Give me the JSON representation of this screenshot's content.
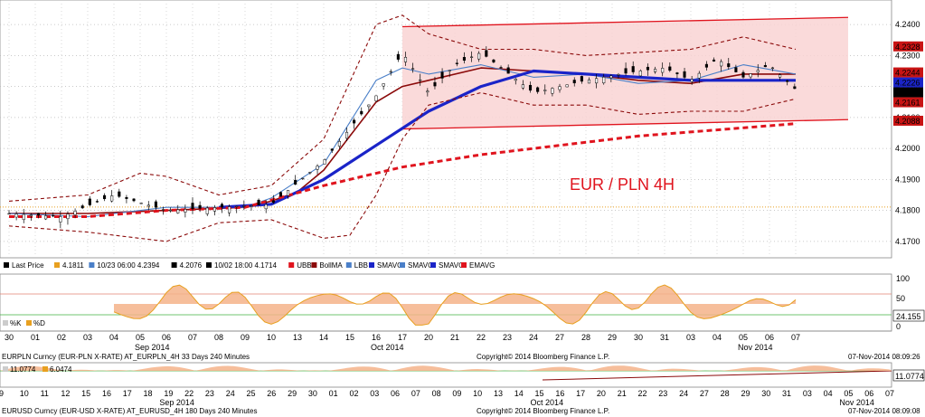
{
  "chart_data": {
    "type": "line",
    "title": "EUR / PLN 4H",
    "y_axis": {
      "range": [
        4.165,
        4.245
      ],
      "ticks": [
        "4.2400",
        "4.2300",
        "4.2200",
        "4.2100",
        "4.2000",
        "4.1900",
        "4.1800",
        "4.1700"
      ],
      "labels": [
        {
          "value": 4.2328,
          "text": "4.2328",
          "color": "#c81414"
        },
        {
          "value": 4.2244,
          "text": "4.2244",
          "color": "#c81414"
        },
        {
          "value": 4.2226,
          "text": "4.2226",
          "color": "#1a24c8"
        },
        {
          "value": 4.2189,
          "text": "4.2189",
          "color": "#000000"
        },
        {
          "value": 4.2161,
          "text": "4.2161",
          "color": "#c81414"
        },
        {
          "value": 4.2088,
          "text": "4.2088",
          "color": "#c81414"
        }
      ]
    },
    "x_dates": [
      "30",
      "01",
      "02",
      "03",
      "04",
      "05",
      "06",
      "07",
      "08",
      "09",
      "10",
      "13",
      "14",
      "15",
      "16",
      "17",
      "20",
      "21",
      "22",
      "23",
      "24",
      "27",
      "28",
      "29",
      "30",
      "31",
      "03",
      "04",
      "05",
      "06",
      "07"
    ],
    "x_month_labels": [
      {
        "text": "Sep 2014",
        "at": 5
      },
      {
        "text": "Oct 2014",
        "at": 14
      },
      {
        "text": "Nov 2014",
        "at": 28
      }
    ],
    "series": [
      {
        "name": "Last Price",
        "color": "#000000",
        "style": "candles",
        "x": [
          0,
          2,
          4,
          6,
          8,
          10,
          12,
          14,
          15,
          16,
          17,
          18,
          20,
          22,
          24,
          25,
          26,
          27,
          28,
          29,
          30
        ],
        "values": [
          4.179,
          4.178,
          4.185,
          4.18,
          4.181,
          4.182,
          4.196,
          4.217,
          4.231,
          4.218,
          4.227,
          4.231,
          4.218,
          4.222,
          4.225,
          4.226,
          4.222,
          4.229,
          4.223,
          4.227,
          4.219
        ]
      },
      {
        "name": "BollMA",
        "color": "#8b0a0a",
        "x": [
          0,
          3,
          6,
          9,
          10,
          11,
          12,
          13,
          14,
          15,
          16,
          18,
          20,
          22,
          24,
          26,
          28,
          30
        ],
        "values": [
          4.179,
          4.179,
          4.18,
          4.181,
          4.183,
          4.186,
          4.193,
          4.204,
          4.215,
          4.22,
          4.222,
          4.226,
          4.225,
          4.224,
          4.222,
          4.221,
          4.224,
          4.224
        ]
      },
      {
        "name": "SMAVG",
        "color": "#4a7fc8",
        "x": [
          0,
          3,
          6,
          9,
          10,
          12,
          14,
          15,
          16,
          18,
          20,
          22,
          24,
          26,
          28,
          30
        ],
        "values": [
          4.179,
          4.178,
          4.181,
          4.181,
          4.184,
          4.195,
          4.222,
          4.226,
          4.224,
          4.227,
          4.223,
          4.224,
          4.221,
          4.222,
          4.227,
          4.224
        ]
      },
      {
        "name": "SMAVG",
        "color": "#1a24c8",
        "x": [
          8,
          10,
          12,
          14,
          16,
          18,
          20,
          22,
          24,
          26,
          28,
          30
        ],
        "values": [
          4.181,
          4.182,
          4.19,
          4.201,
          4.212,
          4.22,
          4.225,
          4.224,
          4.223,
          4.222,
          4.222,
          4.222
        ]
      },
      {
        "name": "EMAVG",
        "color": "#e0141e",
        "style": "dashed",
        "x": [
          0,
          3,
          6,
          9,
          12,
          15,
          18,
          21,
          24,
          27,
          30
        ],
        "values": [
          4.178,
          4.178,
          4.18,
          4.181,
          4.188,
          4.194,
          4.198,
          4.201,
          4.204,
          4.206,
          4.208
        ]
      },
      {
        "name": "UBB",
        "color": "#8b0a0a",
        "style": "dashed",
        "x": [
          0,
          3,
          5,
          6,
          8,
          10,
          12,
          14,
          15,
          16,
          18,
          20,
          22,
          24,
          26,
          28,
          30
        ],
        "values": [
          4.183,
          4.185,
          4.192,
          4.191,
          4.185,
          4.188,
          4.203,
          4.24,
          4.243,
          4.237,
          4.232,
          4.232,
          4.23,
          4.231,
          4.232,
          4.236,
          4.232
        ]
      },
      {
        "name": "LBB",
        "color": "#8b0a0a",
        "style": "dashed",
        "x": [
          0,
          3,
          6,
          8,
          10,
          12,
          13,
          14,
          15,
          16,
          18,
          20,
          22,
          24,
          26,
          28,
          30
        ],
        "values": [
          4.175,
          4.173,
          4.17,
          4.176,
          4.177,
          4.171,
          4.172,
          4.185,
          4.203,
          4.214,
          4.218,
          4.214,
          4.214,
          4.211,
          4.212,
          4.212,
          4.216
        ]
      }
    ],
    "channel": {
      "x": [
        15,
        32
      ],
      "upper": [
        4.2393,
        4.2423
      ],
      "lower": [
        4.2063,
        4.2093
      ],
      "fill": "#f9d3d3",
      "line": "#e0141e"
    },
    "legend": [
      {
        "swatch": "#000000",
        "text": "Last Price"
      },
      {
        "swatch": "#e8a020",
        "text": "4.1811"
      },
      {
        "swatch": "#4a7fc8",
        "text": "10/23 06:00 4.2394"
      },
      {
        "swatch": "#000000",
        "text": "4.2076"
      },
      {
        "swatch": "#000000",
        "text": "10/02 18:00 4.1714"
      },
      {
        "swatch": "#e0141e",
        "text": "UBB"
      },
      {
        "swatch": "#8b0a0a",
        "text": "BollMA"
      },
      {
        "swatch": "#4a7fc8",
        "text": "LBB"
      },
      {
        "swatch": "#1a24c8",
        "text": "SMAVG"
      },
      {
        "swatch": "#4a7fc8",
        "text": "SMAVG"
      },
      {
        "swatch": "#1a24c8",
        "text": "SMAVG"
      },
      {
        "swatch": "#e0141e",
        "text": "EMAVG"
      }
    ],
    "stochastic": {
      "ticks": [
        "100",
        "50",
        "0"
      ],
      "level": "24.155",
      "legend": [
        "%K",
        "%D"
      ]
    },
    "footer1": {
      "left": "EURPLN Curncy (EUR-PLN X-RATE) AT_EURPLN_4H 33 Days 240 Minutes",
      "center": "Copyright© 2014 Bloomberg Finance L.P.",
      "right": "07-Nov-2014 08:09:26"
    },
    "panel2": {
      "legend": [
        "11.0774",
        "6.0474"
      ],
      "last": "11.0774",
      "dates": [
        "9",
        "10",
        "11",
        "12",
        "15",
        "16",
        "17",
        "18",
        "19",
        "22",
        "23",
        "24",
        "25",
        "26",
        "29",
        "30",
        "01",
        "02",
        "03",
        "06",
        "07",
        "08",
        "09",
        "10",
        "13",
        "14",
        "15",
        "16",
        "17",
        "20",
        "21",
        "22",
        "23",
        "24",
        "27",
        "28",
        "29",
        "30",
        "31",
        "03",
        "04",
        "05",
        "06",
        "07"
      ],
      "month_labels": [
        {
          "text": "Sep 2014",
          "at": 8
        },
        {
          "text": "Oct 2014",
          "at": 26
        },
        {
          "text": "Nov 2014",
          "at": 41
        }
      ]
    },
    "footer2": {
      "left": "EURUSD Curncy (EUR-USD X-RATE) AT_EURUSD_4H 180 Days 240 Minutes",
      "center": "Copyright© 2014 Bloomberg Finance L.P.",
      "right": "07-Nov-2014 08:09:08"
    }
  }
}
